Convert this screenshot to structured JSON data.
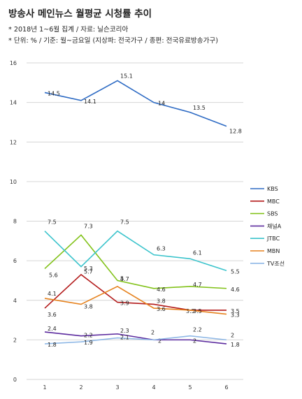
{
  "header": {
    "title": "방송사 메인뉴스 월평균 시청률 추이",
    "note1": "* 2018년 1~6월 집계 / 자료: 닐슨코리아",
    "note2": "* 단위: % / 기준: 월~금요일 (지상파: 전국가구 / 종편: 전국유료방송가구)"
  },
  "chart_data": {
    "type": "line",
    "x": [
      1,
      2,
      3,
      4,
      5,
      6
    ],
    "xlabel": "",
    "ylabel": "",
    "ylim": [
      0,
      16
    ],
    "yticks": [
      0,
      2,
      4,
      6,
      8,
      10,
      12,
      14,
      16
    ],
    "grid": true,
    "legend_position": "right",
    "series": [
      {
        "name": "KBS",
        "color": "#2e6bc4",
        "values": [
          14.5,
          14.1,
          15.1,
          14,
          13.5,
          12.8
        ]
      },
      {
        "name": "MBC",
        "color": "#b31b1b",
        "values": [
          3.6,
          5.3,
          3.9,
          3.8,
          3.5,
          3.5
        ]
      },
      {
        "name": "SBS",
        "color": "#82c21a",
        "values": [
          5.6,
          7.3,
          5,
          4.6,
          4.7,
          4.6
        ]
      },
      {
        "name": "채널A",
        "color": "#5b2a9e",
        "values": [
          2.4,
          2.2,
          2.3,
          2,
          2,
          1.8
        ]
      },
      {
        "name": "JTBC",
        "color": "#3cc4cc",
        "values": [
          7.5,
          5.7,
          7.5,
          6.3,
          6.1,
          5.5
        ]
      },
      {
        "name": "MBN",
        "color": "#e6821e",
        "values": [
          4.1,
          3.8,
          4.7,
          3.6,
          3.5,
          3.3
        ]
      },
      {
        "name": "TV조선",
        "color": "#8fb8e6",
        "values": [
          1.8,
          1.9,
          2.1,
          2,
          2.2,
          2
        ]
      }
    ]
  }
}
